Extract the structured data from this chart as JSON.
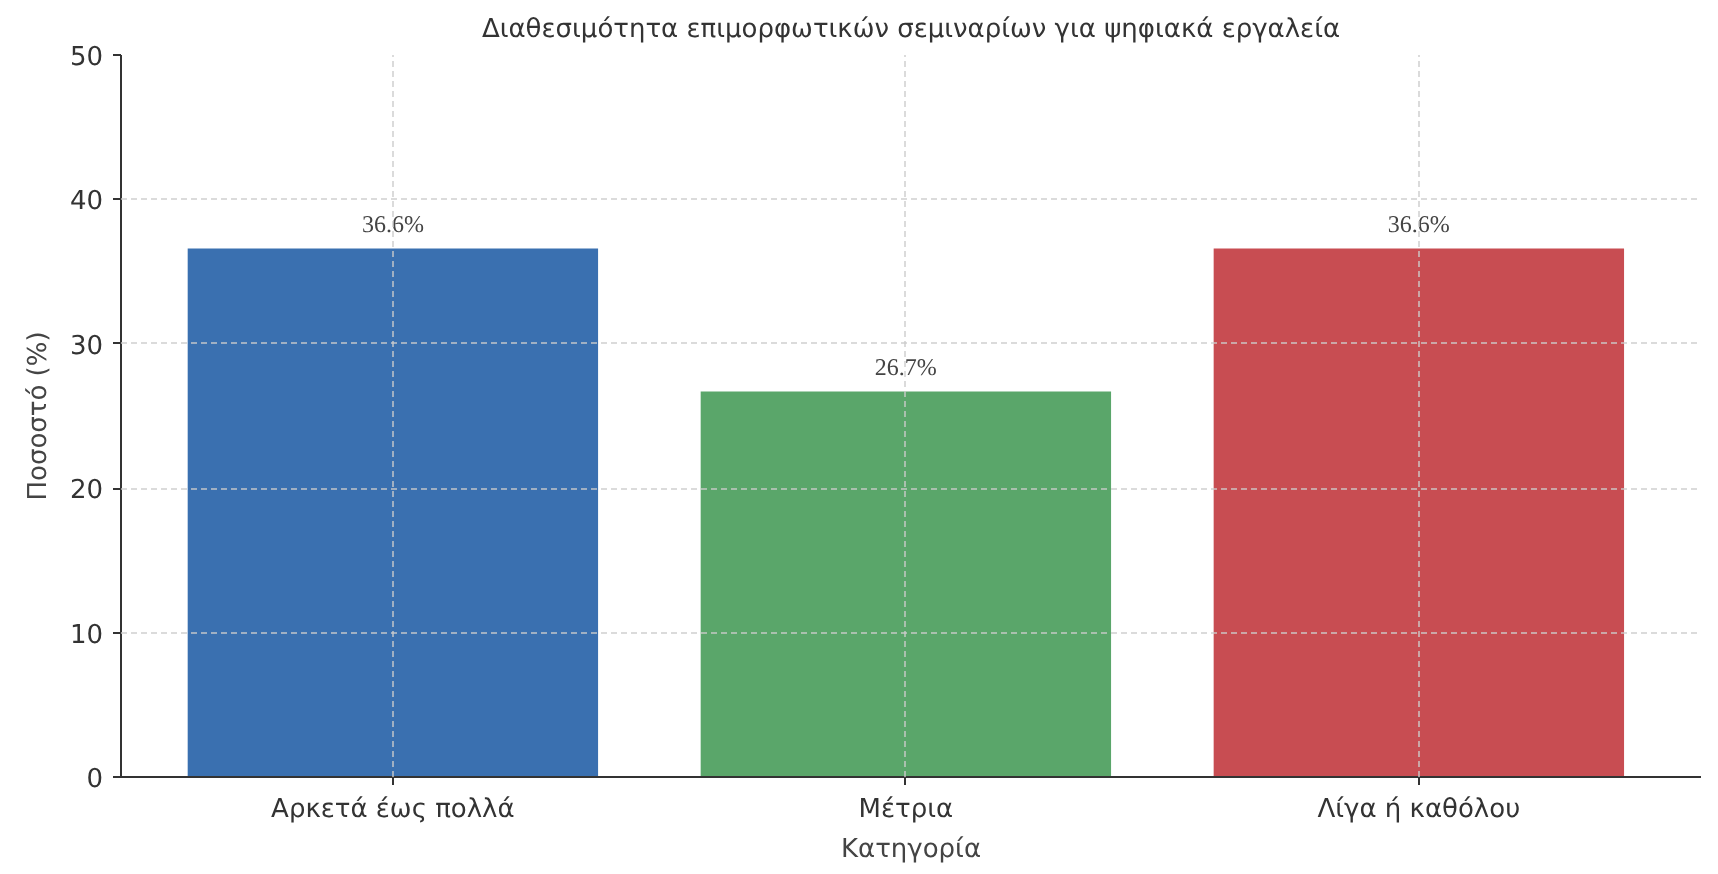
{
  "chart_data": {
    "type": "bar",
    "title": "Διαθεσιμότητα επιμορφωτικών σεμιναρίων για ψηφιακά εργαλεία",
    "xlabel": "Κατηγορία",
    "ylabel": "Ποσοστό (%)",
    "categories": [
      "Αρκετά έως πολλά",
      "Μέτρια",
      "Λίγα ή καθόλου"
    ],
    "values": [
      36.6,
      26.7,
      36.6
    ],
    "colors": [
      "#3a70b0",
      "#5aa66a",
      "#c84d52"
    ],
    "value_labels": [
      "36.6%",
      "26.7%",
      "36.6%"
    ],
    "ylim": [
      0,
      50
    ],
    "yticks": [
      0,
      10,
      20,
      30,
      40,
      50
    ],
    "grid": true
  }
}
